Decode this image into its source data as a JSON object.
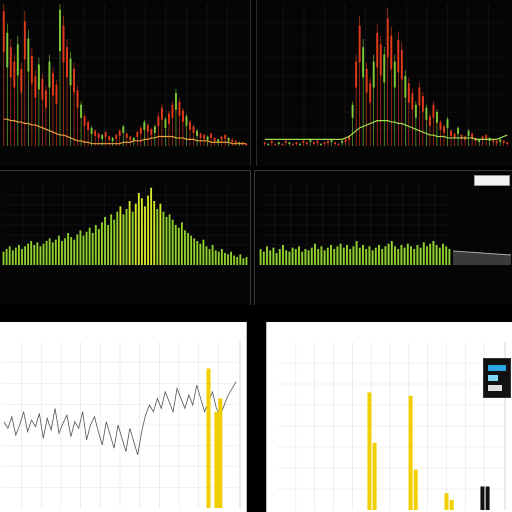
{
  "theme": {
    "up": "#e23b1c",
    "down": "#7fc83a",
    "volume": "#8fd12e",
    "volume_hi": "#d7e82a",
    "ma_line": "#e8a23a",
    "ma_line_green": "#9fdc4f",
    "accent": "#f2cf00",
    "dark_grid": "#1c1c1c",
    "light_grid": "#e4e4e4"
  },
  "panels": {
    "p4": {
      "title": "",
      "box_label": ""
    },
    "p5": {
      "title": ""
    },
    "p6": {
      "title": ""
    }
  },
  "chart_data": [
    {
      "id": "p1",
      "type": "bar",
      "style": "candlestick-dark",
      "title": "",
      "x": [
        1,
        2,
        3,
        4,
        5,
        6,
        7,
        8,
        9,
        10,
        11,
        12,
        13,
        14,
        15,
        16,
        17,
        18,
        19,
        20,
        21,
        22,
        23,
        24,
        25,
        26,
        27,
        28,
        29,
        30,
        31,
        32,
        33,
        34,
        35,
        36,
        37,
        38,
        39,
        40,
        41,
        42,
        43,
        44,
        45,
        46,
        47,
        48,
        49,
        50,
        51,
        52,
        53,
        54,
        55,
        56,
        57,
        58,
        59,
        60,
        61,
        62,
        63,
        64,
        65,
        66,
        67,
        68,
        69,
        70
      ],
      "values": [
        95,
        80,
        70,
        60,
        72,
        55,
        88,
        76,
        64,
        50,
        58,
        48,
        40,
        60,
        52,
        44,
        96,
        85,
        70,
        62,
        55,
        40,
        30,
        22,
        18,
        14,
        12,
        10,
        9,
        11,
        8,
        7,
        9,
        12,
        15,
        10,
        8,
        7,
        11,
        14,
        18,
        16,
        13,
        15,
        22,
        28,
        20,
        24,
        30,
        38,
        32,
        26,
        22,
        18,
        15,
        12,
        10,
        9,
        8,
        10,
        7,
        6,
        8,
        9,
        7,
        6,
        5,
        4,
        4,
        3
      ],
      "ma": [
        20,
        20,
        19,
        19,
        18,
        18,
        17,
        17,
        16,
        16,
        15,
        14,
        13,
        12,
        11,
        10,
        9,
        9,
        8,
        7,
        6,
        5,
        5,
        4,
        4,
        3,
        3,
        3,
        3,
        3,
        3,
        3,
        3,
        3,
        4,
        4,
        4,
        5,
        5,
        5,
        6,
        6,
        7,
        7,
        8,
        8,
        8,
        8,
        8,
        7,
        7,
        7,
        6,
        6,
        6,
        5,
        5,
        5,
        5,
        4,
        4,
        4,
        4,
        4,
        4,
        3,
        3,
        3,
        3,
        3
      ],
      "ylim": [
        0,
        100
      ],
      "grid": true
    },
    {
      "id": "p2",
      "type": "bar",
      "style": "candlestick-dark",
      "title": "",
      "x": [
        1,
        2,
        3,
        4,
        5,
        6,
        7,
        8,
        9,
        10,
        11,
        12,
        13,
        14,
        15,
        16,
        17,
        18,
        19,
        20,
        21,
        22,
        23,
        24,
        25,
        26,
        27,
        28,
        29,
        30,
        31,
        32,
        33,
        34,
        35,
        36,
        37,
        38,
        39,
        40,
        41,
        42,
        43,
        44,
        45,
        46,
        47,
        48,
        49,
        50,
        51,
        52,
        53,
        54,
        55,
        56,
        57,
        58,
        59,
        60,
        61,
        62,
        63,
        64,
        65,
        66,
        67,
        68,
        69,
        70
      ],
      "values": [
        4,
        3,
        5,
        3,
        4,
        3,
        5,
        4,
        3,
        4,
        3,
        5,
        4,
        6,
        4,
        5,
        3,
        4,
        5,
        6,
        4,
        3,
        5,
        6,
        8,
        30,
        60,
        85,
        70,
        55,
        45,
        60,
        80,
        72,
        65,
        90,
        78,
        60,
        75,
        68,
        50,
        45,
        38,
        30,
        42,
        36,
        28,
        22,
        30,
        25,
        18,
        15,
        20,
        12,
        10,
        14,
        9,
        8,
        12,
        10,
        7,
        6,
        8,
        9,
        7,
        6,
        5,
        6,
        5,
        4
      ],
      "ma": [
        6,
        6,
        6,
        6,
        6,
        6,
        6,
        6,
        6,
        6,
        6,
        6,
        6,
        6,
        6,
        6,
        6,
        6,
        6,
        6,
        6,
        6,
        6,
        7,
        8,
        10,
        12,
        14,
        15,
        16,
        17,
        18,
        19,
        19,
        19,
        19,
        18,
        18,
        17,
        17,
        16,
        15,
        14,
        13,
        12,
        11,
        10,
        9,
        9,
        8,
        8,
        8,
        7,
        7,
        7,
        7,
        7,
        7,
        7,
        7,
        6,
        6,
        6,
        6,
        6,
        6,
        6,
        7,
        8,
        9
      ],
      "ylim": [
        0,
        100
      ],
      "grid": true
    },
    {
      "id": "p3",
      "type": "bar",
      "style": "volume-dark",
      "title": "",
      "x": [
        1,
        2,
        3,
        4,
        5,
        6,
        7,
        8,
        9,
        10,
        11,
        12,
        13,
        14,
        15,
        16,
        17,
        18,
        19,
        20,
        21,
        22,
        23,
        24,
        25,
        26,
        27,
        28,
        29,
        30,
        31,
        32,
        33,
        34,
        35,
        36,
        37,
        38,
        39,
        40,
        41,
        42,
        43,
        44,
        45,
        46,
        47,
        48,
        49,
        50,
        51,
        52,
        53,
        54,
        55,
        56,
        57,
        58,
        59,
        60,
        61,
        62,
        63,
        64,
        65,
        66,
        67,
        68,
        69,
        70,
        71,
        72,
        73,
        74,
        75,
        76,
        77,
        78,
        79,
        80
      ],
      "values": [
        10,
        12,
        14,
        11,
        13,
        15,
        12,
        14,
        16,
        18,
        15,
        17,
        14,
        16,
        18,
        20,
        17,
        19,
        22,
        18,
        20,
        24,
        21,
        19,
        23,
        26,
        22,
        25,
        28,
        24,
        30,
        27,
        32,
        36,
        30,
        38,
        34,
        40,
        44,
        38,
        42,
        48,
        40,
        46,
        54,
        50,
        44,
        52,
        58,
        48,
        42,
        46,
        40,
        36,
        38,
        34,
        30,
        28,
        32,
        26,
        24,
        22,
        20,
        18,
        16,
        19,
        14,
        12,
        15,
        11,
        10,
        12,
        9,
        8,
        10,
        7,
        6,
        8,
        5,
        6
      ],
      "ylim": [
        0,
        60
      ],
      "grid": true
    },
    {
      "id": "p4",
      "type": "bar",
      "style": "volume-dark",
      "title": "",
      "x": [
        1,
        2,
        3,
        4,
        5,
        6,
        7,
        8,
        9,
        10,
        11,
        12,
        13,
        14,
        15,
        16,
        17,
        18,
        19,
        20,
        21,
        22,
        23,
        24,
        25,
        26,
        27,
        28,
        29,
        30,
        31,
        32,
        33,
        34,
        35,
        36,
        37,
        38,
        39,
        40,
        41,
        42,
        43,
        44,
        45,
        46,
        47,
        48,
        49,
        50,
        51,
        52,
        53,
        54,
        55,
        56,
        57,
        58,
        59,
        60
      ],
      "values": [
        12,
        10,
        14,
        11,
        13,
        9,
        12,
        15,
        11,
        10,
        13,
        12,
        14,
        10,
        12,
        11,
        13,
        16,
        12,
        14,
        11,
        13,
        15,
        12,
        14,
        16,
        13,
        15,
        12,
        14,
        18,
        13,
        15,
        12,
        14,
        11,
        13,
        15,
        12,
        14,
        16,
        18,
        14,
        12,
        15,
        13,
        16,
        14,
        12,
        15,
        13,
        17,
        14,
        16,
        18,
        15,
        13,
        16,
        14,
        12
      ],
      "ylim": [
        0,
        60
      ],
      "grid": true
    },
    {
      "id": "p5",
      "type": "line",
      "style": "light",
      "title": "",
      "x": [
        1,
        2,
        3,
        4,
        5,
        6,
        7,
        8,
        9,
        10,
        11,
        12,
        13,
        14,
        15,
        16,
        17,
        18,
        19,
        20,
        21,
        22,
        23,
        24,
        25,
        26,
        27,
        28,
        29,
        30,
        31,
        32,
        33,
        34,
        35,
        36,
        37,
        38,
        39,
        40,
        41,
        42,
        43,
        44,
        45,
        46,
        47,
        48,
        49,
        50,
        51,
        52,
        53,
        54,
        55,
        56,
        57,
        58,
        59,
        60
      ],
      "values": [
        52,
        48,
        55,
        44,
        50,
        58,
        46,
        53,
        49,
        57,
        42,
        54,
        47,
        60,
        45,
        51,
        56,
        43,
        52,
        48,
        58,
        41,
        50,
        55,
        46,
        38,
        52,
        44,
        36,
        50,
        42,
        34,
        48,
        40,
        32,
        46,
        56,
        62,
        58,
        66,
        60,
        70,
        64,
        58,
        72,
        66,
        60,
        68,
        62,
        74,
        66,
        58,
        64,
        70,
        60,
        56,
        62,
        68,
        72,
        76
      ],
      "bars": [
        {
          "x": 53,
          "value": 84,
          "color": "#f2cf00"
        },
        {
          "x": 55,
          "value": 58,
          "color": "#f2cf00"
        },
        {
          "x": 56,
          "value": 66,
          "color": "#f2cf00"
        }
      ],
      "ylim": [
        0,
        100
      ],
      "grid": true
    },
    {
      "id": "p6",
      "type": "bar",
      "style": "light",
      "title": "",
      "bars": [
        {
          "x": 18,
          "value": 70,
          "color": "#f2cf00"
        },
        {
          "x": 19,
          "value": 40,
          "color": "#f2cf00"
        },
        {
          "x": 26,
          "value": 68,
          "color": "#f2cf00"
        },
        {
          "x": 27,
          "value": 24,
          "color": "#f2cf00"
        },
        {
          "x": 33,
          "value": 10,
          "color": "#f2cf00"
        },
        {
          "x": 34,
          "value": 6,
          "color": "#f2cf00"
        },
        {
          "x": 40,
          "value": 14,
          "color": "#111111"
        },
        {
          "x": 41,
          "value": 14,
          "color": "#111111"
        }
      ],
      "xlim": [
        0,
        44
      ],
      "ylim": [
        0,
        100
      ],
      "grid": true
    }
  ]
}
